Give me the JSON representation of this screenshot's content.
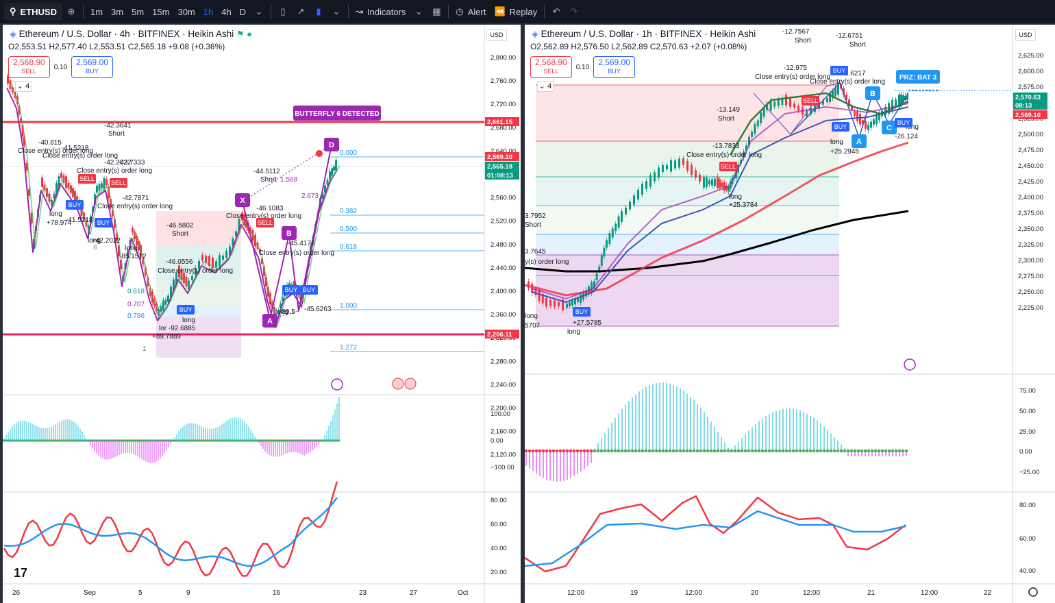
{
  "toolbar": {
    "symbol": "ETHUSD",
    "intervals": [
      "1m",
      "3m",
      "5m",
      "15m",
      "30m",
      "1h",
      "4h",
      "D"
    ],
    "active_interval": "1h",
    "indicators_label": "Indicators",
    "alert_label": "Alert",
    "replay_label": "Replay"
  },
  "left": {
    "title": "Ethereum / U.S. Dollar · 4h · BITFINEX · Heikin Ashi",
    "ohlc": "O2,553.51 H2,577.40 L2,553.51 C2,565.18 +9.08 (+0.36%)",
    "sell_price": "2,568.90",
    "sell_label": "SELL",
    "qty": "0.10",
    "buy_price": "2,569.00",
    "buy_label": "BUY",
    "lots": "4",
    "currency": "USD",
    "price_labels": [
      "2,800.00",
      "2,760.00",
      "2,720.00",
      "2,680.00",
      "2,640.00",
      "2,600.00",
      "2,560.00",
      "2,520.00",
      "2,480.00",
      "2,440.00",
      "2,400.00",
      "2,360.00",
      "2,320.00",
      "2,280.00",
      "2,240.00",
      "2,200.00",
      "2,160.00",
      "2,120.00"
    ],
    "price_tags": [
      {
        "text": "2,661.15",
        "color": "#f23645"
      },
      {
        "text": "2,569.10",
        "color": "#f23645"
      },
      {
        "text": "2,565.18",
        "color": "#089981"
      },
      {
        "text": "01:08:13",
        "color": "#089981"
      },
      {
        "text": "2,206.11",
        "color": "#f23645"
      }
    ],
    "fib_labels": [
      "0.000",
      "0.382",
      "0.500",
      "0.618",
      "1.000",
      "1.272"
    ],
    "fib_left": [
      "0.618",
      "0.707",
      "0.786"
    ],
    "butterfly": "BUTTERFLY 6 DETECTED",
    "points": [
      "X",
      "A",
      "B",
      "D"
    ],
    "ratios": [
      "1.568",
      "2.673"
    ],
    "annotations": [
      "-42.3641",
      "Short",
      "-40.815",
      "-41.5218",
      "Close entry(s) order long",
      "Close entry(s) order long",
      "-42.2022",
      "-43.7333",
      "Close entry(s) order long",
      "-42.7871",
      "Close entry(s) order long",
      "-46.5802",
      "Short",
      "-46.0556",
      "Close entry(s) order long",
      "-44.5112",
      "Short",
      "-46.1083",
      "Close entry(s) order long",
      "-45.4176",
      "Close entry(s) order long",
      "long",
      "+78.974",
      "-41.5218",
      "long",
      "+42.2022",
      "long",
      "-85.1512",
      "long",
      "lor -92.6885",
      "+89.7889",
      "long",
      "-89.5",
      "-45.6263"
    ],
    "signals": [
      "SELL",
      "SELL",
      "BUY",
      "BUY",
      "BUY",
      "SELL",
      "BUY",
      "BUY"
    ],
    "macd_labels": [
      "100.00",
      "0.00",
      "−100.00"
    ],
    "rsi_labels": [
      "80.00",
      "60.00",
      "40.00",
      "20.00"
    ],
    "time_labels": [
      "26",
      "Sep",
      "5",
      "9",
      "16",
      "23",
      "27",
      "Oct"
    ],
    "count_labels": [
      "8",
      "7",
      "1"
    ]
  },
  "right": {
    "title": "Ethereum / U.S. Dollar · 1h · BITFINEX · Heikin Ashi",
    "ohlc": "O2,562.89 H2,576.50 L2,562.89 C2,570.63 +2.07 (+0.08%)",
    "sell_price": "2,568.90",
    "sell_label": "SELL",
    "qty": "0.10",
    "buy_price": "2,569.00",
    "buy_label": "BUY",
    "lots": "4",
    "currency": "USD",
    "price_labels": [
      "2,625.00",
      "2,600.00",
      "2,575.00",
      "2,550.00",
      "2,525.00",
      "2,500.00",
      "2,475.00",
      "2,450.00",
      "2,425.00",
      "2,400.00",
      "2,375.00",
      "2,350.00",
      "2,325.00",
      "2,300.00",
      "2,275.00",
      "2,250.00",
      "2,225.00"
    ],
    "price_tags": [
      {
        "text": "2,570.63",
        "color": "#089981"
      },
      {
        "text": "08:13",
        "color": "#089981"
      },
      {
        "text": "2,569.10",
        "color": "#f23645"
      }
    ],
    "prz": "PRZ: BAT 3",
    "points": [
      "A",
      "B",
      "C"
    ],
    "annotations": [
      "-12.7567",
      "Short",
      "-12.6751",
      "Short",
      "-12.975",
      "-12.6217",
      "Close entry(s) order long",
      "Close entry(s) order long",
      "-13.149",
      "Short",
      "-13.7833",
      "Close entry(s) order long",
      "3.7952",
      "Short",
      "3.7645",
      "y(s) order long",
      "long",
      "+25.3784",
      "long",
      "+25.2945",
      "long",
      "-26.124",
      "long",
      "+27.5785",
      "long",
      "5707"
    ],
    "signals": [
      "SELL",
      "SELL",
      "BUY",
      "BUY",
      "BUY",
      "BUY"
    ],
    "macd_labels": [
      "75.00",
      "50.00",
      "25.00",
      "0.00",
      "−25.00"
    ],
    "rsi_labels": [
      "80.00",
      "60.00",
      "40.00"
    ],
    "time_labels": [
      "12:00",
      "19",
      "12:00",
      "20",
      "12:00",
      "21",
      "12:00",
      "22"
    ]
  },
  "colors": {
    "up": "#089981",
    "down": "#f23645",
    "accent": "#2962ff",
    "pattern": "#9c27b0"
  }
}
